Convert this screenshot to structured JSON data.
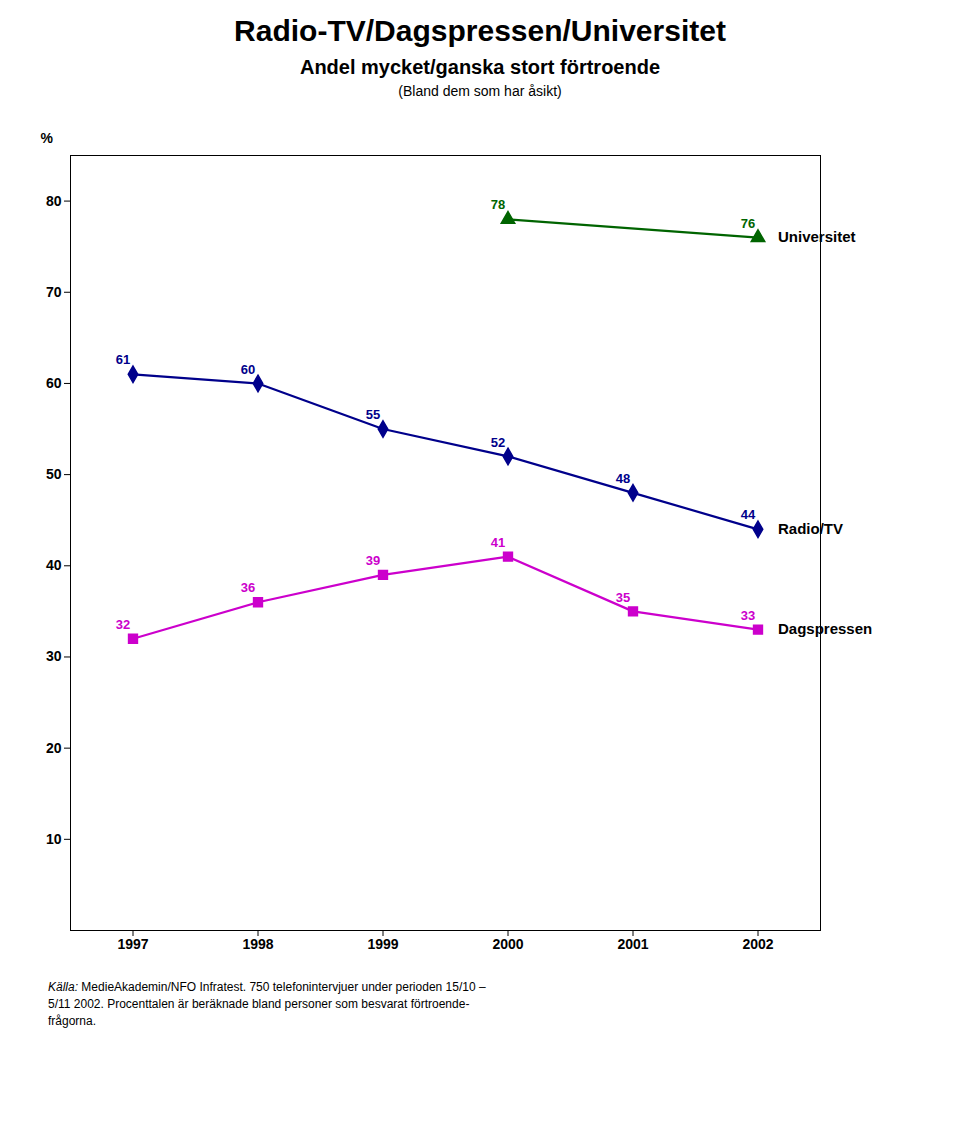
{
  "chart_data": {
    "type": "line",
    "title": "Radio-TV/Dagspressen/Universitet",
    "subtitle": "Andel mycket/ganska stort förtroende",
    "subtitle2": "(Bland dem som har åsikt)",
    "caption_label": "Källa:",
    "caption": " MedieAkademin/NFO Infratest. 750 telefonintervjuer under perioden 15/10 –\n5/11 2002. Procenttalen är beräknade bland personer som besvarat förtroende-\nfrågorna.",
    "ylabel": "%",
    "xlim": [
      1996.5,
      2002.5
    ],
    "xticks": [
      1997,
      1998,
      1999,
      2000,
      2001,
      2002
    ],
    "ylim": [
      0,
      85
    ],
    "yticks": [
      10,
      20,
      30,
      40,
      50,
      60,
      70,
      80
    ],
    "grid": false,
    "data_labels": true,
    "series": [
      {
        "name": "Radio/TV",
        "color": "#00008B",
        "marker": "diamond",
        "x": [
          1997,
          1998,
          1999,
          2000,
          2001,
          2002
        ],
        "values": [
          61,
          60,
          55,
          52,
          48,
          44
        ]
      },
      {
        "name": "Dagspressen",
        "color": "#cc00cc",
        "marker": "square",
        "x": [
          1997,
          1998,
          1999,
          2000,
          2001,
          2002
        ],
        "values": [
          32,
          36,
          39,
          41,
          35,
          33
        ]
      },
      {
        "name": "Universitet",
        "color": "#006400",
        "marker": "triangle",
        "x": [
          2000,
          2002
        ],
        "values": [
          78,
          76
        ]
      }
    ]
  }
}
